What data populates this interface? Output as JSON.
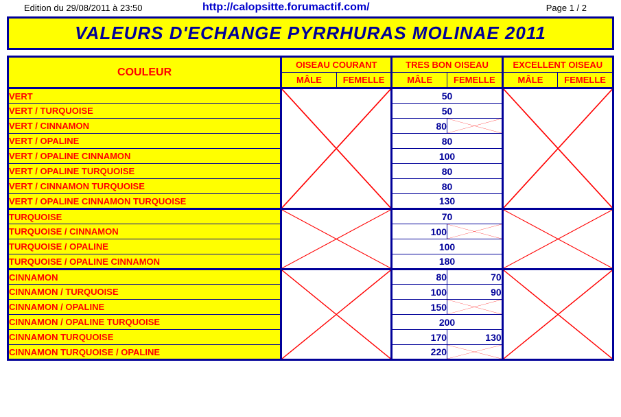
{
  "header": {
    "edition": "Edition du 29/08/2011 à 23:50",
    "url": "http://calopsitte.forumactif.com/",
    "page": "Page 1 / 2"
  },
  "title": "VALEURS D'ECHANGE PYRRHURAS MOLINAE 2011",
  "columns": {
    "couleur": "COULEUR",
    "groups": [
      "OISEAU COURANT",
      "TRES BON OISEAU",
      "EXCELLENT OISEAU"
    ],
    "subs": [
      "MÂLE",
      "FEMELLE"
    ]
  },
  "sections": [
    {
      "rows": [
        {
          "label": "VERT",
          "male": "50",
          "femelle_span": true
        },
        {
          "label": "VERT / TURQUOISE",
          "male": "50",
          "femelle_span": true
        },
        {
          "label": "VERT / CINNAMON",
          "male": "80",
          "femelle_x": true
        },
        {
          "label": "VERT / OPALINE",
          "male": "80",
          "femelle_span": true
        },
        {
          "label": "VERT / OPALINE CINNAMON",
          "male": "100",
          "femelle_span": true
        },
        {
          "label": "VERT / OPALINE TURQUOISE",
          "male": "80",
          "femelle_span": true
        },
        {
          "label": "VERT / CINNAMON TURQUOISE",
          "male": "80",
          "femelle_span": true
        },
        {
          "label": "VERT / OPALINE CINNAMON TURQUOISE",
          "male": "130",
          "femelle_span": true
        }
      ]
    },
    {
      "rows": [
        {
          "label": "TURQUOISE",
          "male": "70",
          "femelle_span": true
        },
        {
          "label": "TURQUOISE / CINNAMON",
          "male": "100",
          "femelle_x": true
        },
        {
          "label": "TURQUOISE / OPALINE",
          "male": "100",
          "femelle_span": true
        },
        {
          "label": "TURQUOISE / OPALINE CINNAMON",
          "male": "180",
          "femelle_span": true
        }
      ]
    },
    {
      "rows": [
        {
          "label": "CINNAMON",
          "male": "80",
          "femelle": "70"
        },
        {
          "label": "CINNAMON / TURQUOISE",
          "male": "100",
          "femelle": "90"
        },
        {
          "label": "CINNAMON / OPALINE",
          "male": "150",
          "femelle_x": true
        },
        {
          "label": "CINNAMON / OPALINE TURQUOISE",
          "male": "200",
          "femelle_span": true
        },
        {
          "label": "CINNAMON TURQUOISE",
          "male": "170",
          "femelle": "130"
        },
        {
          "label": "CINNAMON TURQUOISE / OPALINE",
          "male": "220",
          "femelle_x": true
        }
      ]
    }
  ],
  "layout": {
    "col_couleur_width": 395,
    "col_val_width": 80
  },
  "styling": {
    "yellow": "#ffff00",
    "navy": "#000099",
    "red": "#ff0000"
  }
}
